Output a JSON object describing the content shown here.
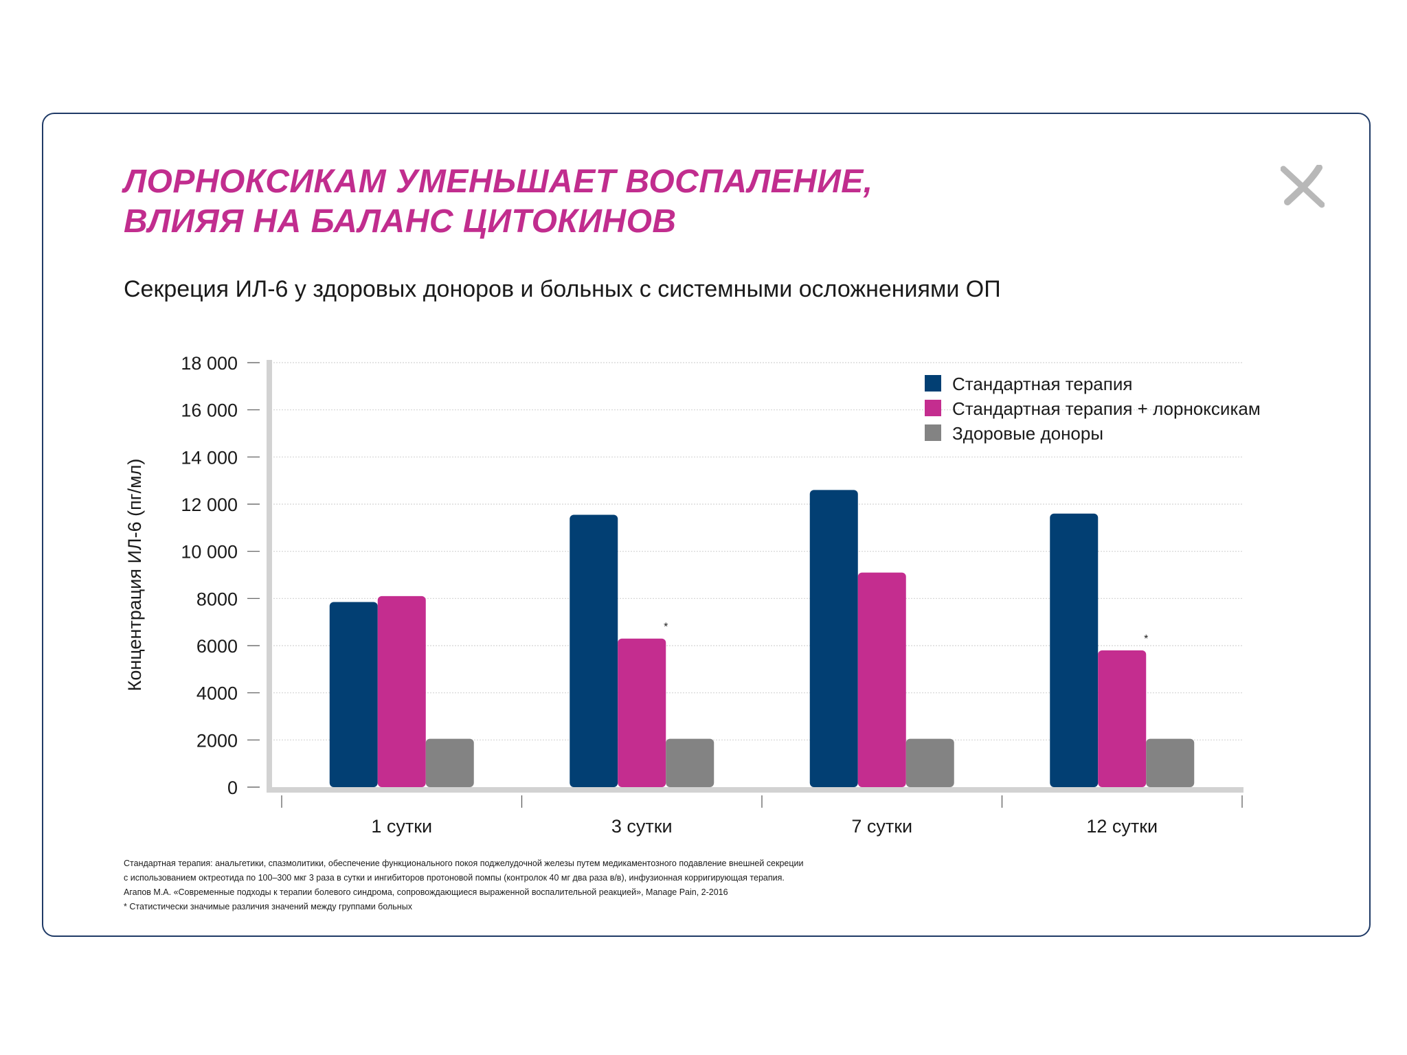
{
  "headline": {
    "line1": "ЛОРНОКСИКАМ УМЕНЬШАЕТ ВОСПАЛЕНИЕ,",
    "line2": "ВЛИЯЯ НА БАЛАНС ЦИТОКИНОВ"
  },
  "subtitle": "Секреция ИЛ-6 у здоровых доноров и больных с системными осложнениями ОП",
  "colors": {
    "headline": "#c12d8e",
    "border": "#1f3a66",
    "close_icon": "#b8b8b8"
  },
  "chart_data": {
    "type": "bar",
    "ylabel": "Концентрация ИЛ-6 (пг/мл)",
    "xlabel": "",
    "ylim": [
      0,
      18000
    ],
    "yticks": [
      0,
      2000,
      4000,
      6000,
      8000,
      10000,
      12000,
      14000,
      16000,
      18000
    ],
    "ytick_labels": [
      "0",
      "2000",
      "4000",
      "6000",
      "8000",
      "10 000",
      "12 000",
      "14 000",
      "16 000",
      "18 000"
    ],
    "grid": true,
    "legend_position": "top-right",
    "categories": [
      "1 сутки",
      "3 сутки",
      "7 сутки",
      "12 сутки"
    ],
    "series": [
      {
        "name": "Стандартная терапия",
        "color": "#023f73",
        "values": [
          7850,
          11550,
          12600,
          11600
        ]
      },
      {
        "name": "Стандартная терапия + лорноксикам",
        "color": "#c42d8f",
        "values": [
          8100,
          6300,
          9100,
          5800
        ]
      },
      {
        "name": "Здоровые доноры",
        "color": "#838383",
        "values": [
          2050,
          2050,
          2050,
          2050
        ]
      }
    ],
    "annotations": [
      {
        "text": "*",
        "series": 1,
        "category": 1
      },
      {
        "text": "*",
        "series": 1,
        "category": 3
      }
    ]
  },
  "footnotes": [
    "Стандартная терапия: анальгетики, спазмолитики, обеспечение функционального покоя поджелудочной железы путем медикаментозного подавление внешней секреции",
    "с использованием октреотида по 100–300 мкг 3 раза в сутки и ингибиторов протоновой помпы (контролок 40 мг два раза в/в), инфузионная корригирующая терапия.",
    "Агапов М.А. «Современные подходы к терапии болевого синдрома, сопровождающиеся выраженной воспалительной реакцией», Manage Pain, 2-2016",
    "* Статистически значимые различия значений между группами больных"
  ]
}
